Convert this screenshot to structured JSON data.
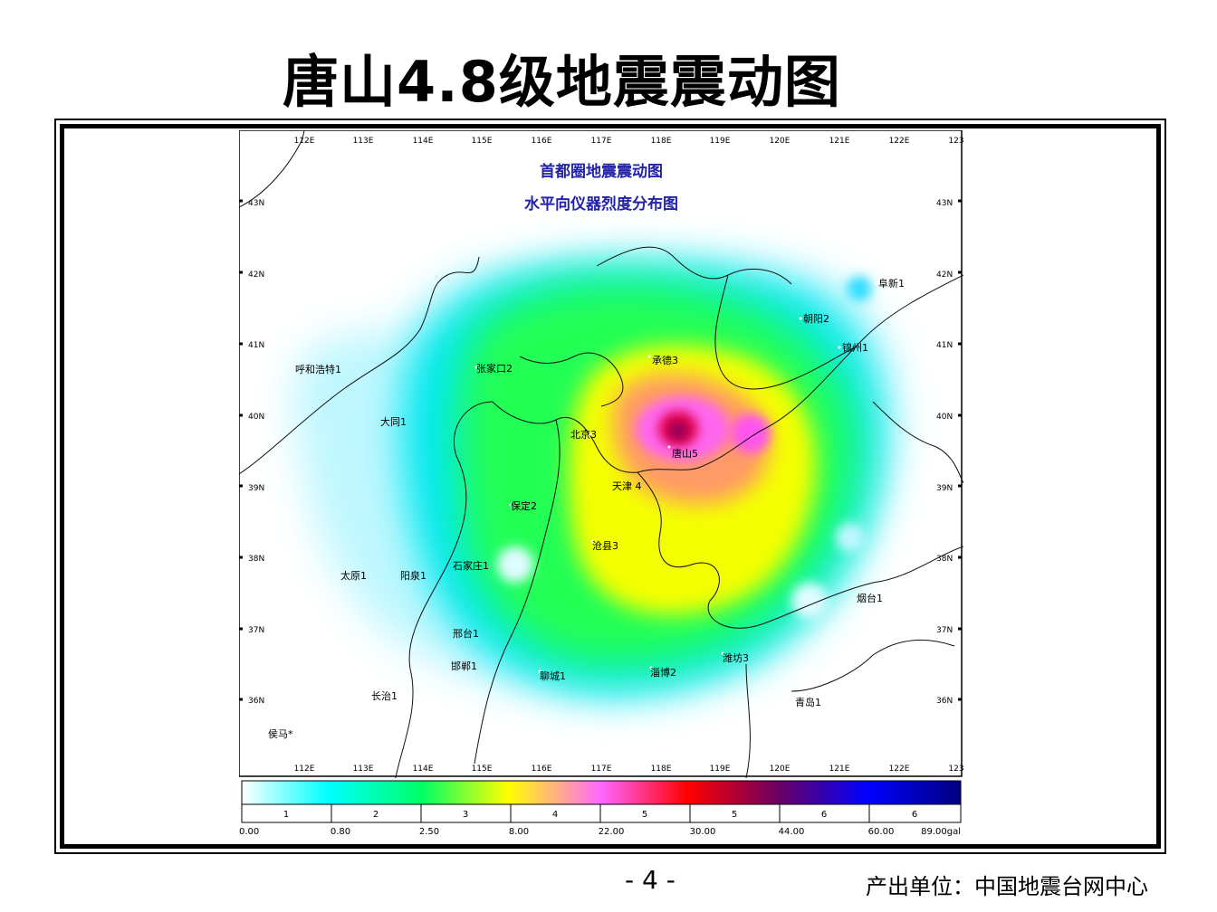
{
  "title": "唐山4.8级地震震动图",
  "map": {
    "title_line1": "首都圈地震震动图",
    "title_line2": "水平向仪器烈度分布图",
    "top_ticks": [
      "112E",
      "113E",
      "114E",
      "115E",
      "116E",
      "117E",
      "118E",
      "119E",
      "120E",
      "121E",
      "122E",
      "123"
    ],
    "bottom_ticks": [
      "112E",
      "113E",
      "114E",
      "115E",
      "116E",
      "117E",
      "118E",
      "119E",
      "120E",
      "121E",
      "122E",
      "123"
    ],
    "left_ticks": [
      "43N",
      "42N",
      "41N",
      "40N",
      "39N",
      "38N",
      "37N",
      "36N"
    ],
    "right_ticks": [
      "43N",
      "42N",
      "41N",
      "40N",
      "39N",
      "38N",
      "37N",
      "36N"
    ],
    "cities": [
      {
        "label": "阜新1"
      },
      {
        "label": "朝阳2"
      },
      {
        "label": "锦州1"
      },
      {
        "label": "承德3"
      },
      {
        "label": "呼和浩特1"
      },
      {
        "label": "张家口2"
      },
      {
        "label": "大同1"
      },
      {
        "label": "北京3"
      },
      {
        "label": "唐山5"
      },
      {
        "label": "天津 4"
      },
      {
        "label": "保定2"
      },
      {
        "label": "沧县3"
      },
      {
        "label": "石家庄1"
      },
      {
        "label": "太原1"
      },
      {
        "label": "阳泉1"
      },
      {
        "label": "烟台1"
      },
      {
        "label": "邢台1"
      },
      {
        "label": "潍坊3"
      },
      {
        "label": "邯郸1"
      },
      {
        "label": "聊城1"
      },
      {
        "label": "淄博2"
      },
      {
        "label": "长治1"
      },
      {
        "label": "青岛1"
      },
      {
        "label": "侯马*"
      }
    ]
  },
  "legend": {
    "intensity_labels": [
      "1",
      "2",
      "3",
      "4",
      "5",
      "5",
      "6",
      "6"
    ],
    "values": [
      "0.00",
      "0.80",
      "2.50",
      "8.00",
      "22.00",
      "30.00",
      "44.00",
      "60.00",
      "89.00gal"
    ],
    "gradient_colors": [
      "#ffffff",
      "#00ffff",
      "#00ff66",
      "#ffff00",
      "#ff66ff",
      "#ff0000",
      "#660066",
      "#0000ff",
      "#000080"
    ]
  },
  "footer": {
    "page_number": "- 4 -",
    "producer": "产出单位：中国地震台网中心"
  }
}
